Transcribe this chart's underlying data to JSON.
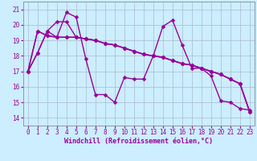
{
  "background_color": "#cceeff",
  "grid_color": "#aabbcc",
  "line_color": "#990099",
  "marker": "D",
  "markersize": 2.5,
  "linewidth": 1.0,
  "xlim": [
    -0.5,
    23.5
  ],
  "ylim": [
    13.5,
    21.5
  ],
  "yticks": [
    14,
    15,
    16,
    17,
    18,
    19,
    20,
    21
  ],
  "xticks": [
    0,
    1,
    2,
    3,
    4,
    5,
    6,
    7,
    8,
    9,
    10,
    11,
    12,
    13,
    14,
    15,
    16,
    17,
    18,
    19,
    20,
    21,
    22,
    23
  ],
  "xlabel": "Windchill (Refroidissement éolien,°C)",
  "xlabel_fontsize": 6.0,
  "tick_fontsize": 5.5,
  "series": [
    [
      17.0,
      18.2,
      19.6,
      19.2,
      20.8,
      20.5,
      17.8,
      15.5,
      15.5,
      15.0,
      16.6,
      16.5,
      16.5,
      18.0,
      19.9,
      20.3,
      18.7,
      17.2,
      17.2,
      16.7,
      15.1,
      15.0,
      14.6,
      14.5
    ],
    [
      17.0,
      19.6,
      19.3,
      19.2,
      19.2,
      19.2,
      19.1,
      19.0,
      18.8,
      18.7,
      18.5,
      18.3,
      18.1,
      18.0,
      17.9,
      17.7,
      17.5,
      17.4,
      17.2,
      17.0,
      16.8,
      16.5,
      16.2,
      14.4
    ],
    [
      17.0,
      19.6,
      19.3,
      19.2,
      19.2,
      19.2,
      19.1,
      19.0,
      18.8,
      18.7,
      18.5,
      18.3,
      18.1,
      18.0,
      17.9,
      17.7,
      17.5,
      17.4,
      17.2,
      17.0,
      16.8,
      16.5,
      16.2,
      14.4
    ],
    [
      17.0,
      18.2,
      19.6,
      20.2,
      20.2,
      19.2,
      19.1,
      19.0,
      18.8,
      18.7,
      18.5,
      18.3,
      18.1,
      18.0,
      17.9,
      17.7,
      17.5,
      17.4,
      17.2,
      17.0,
      16.8,
      16.5,
      16.2,
      14.4
    ]
  ]
}
